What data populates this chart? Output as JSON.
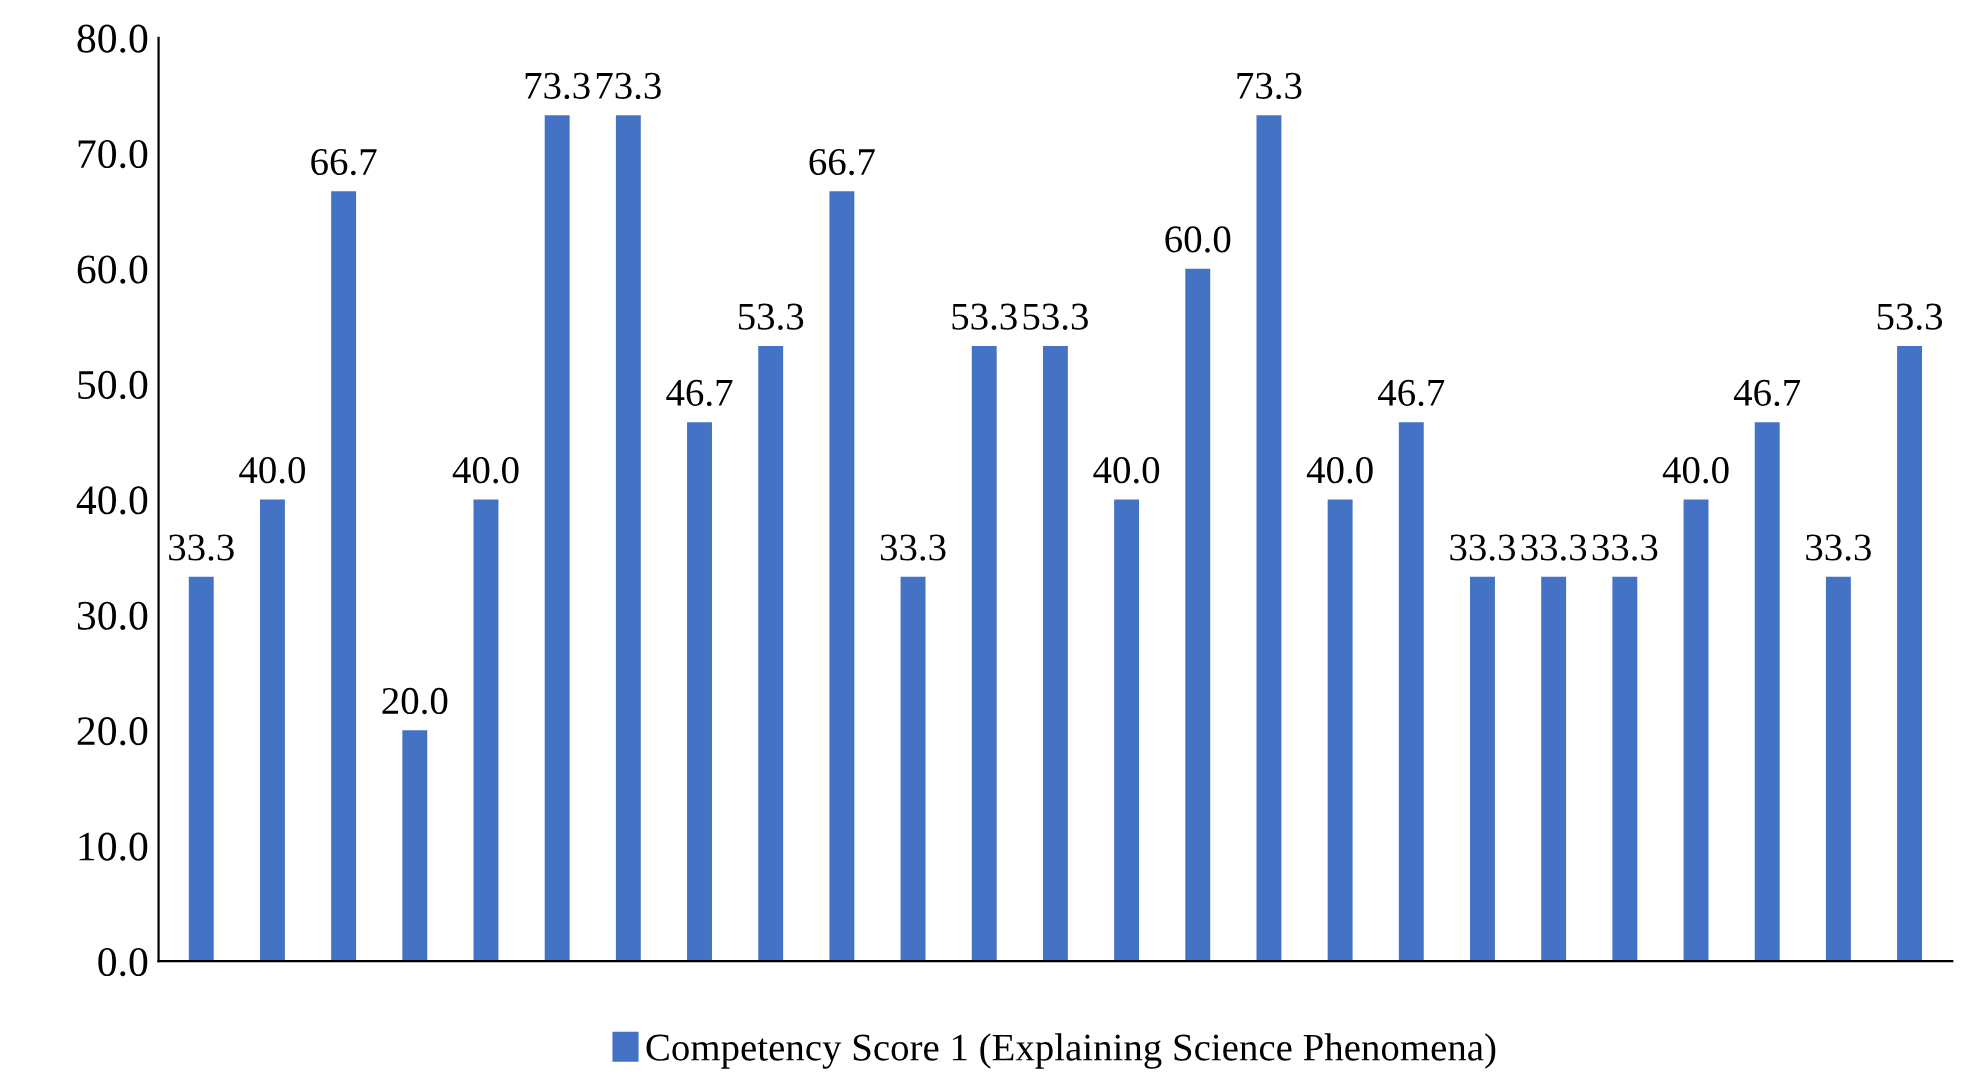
{
  "chart_data": {
    "type": "bar",
    "categories": [
      null,
      null,
      null,
      null,
      null,
      null,
      null,
      null,
      null,
      null,
      null,
      null,
      null,
      null,
      null,
      null,
      null,
      null,
      null,
      null,
      null,
      null,
      null,
      null,
      null
    ],
    "series": [
      {
        "name": "Competency Score 1 (Explaining Science Phenomena)",
        "color": "#4472c4",
        "values": [
          33.3,
          40.0,
          66.7,
          20.0,
          40.0,
          73.3,
          73.3,
          46.7,
          53.3,
          66.7,
          33.3,
          53.3,
          53.3,
          40.0,
          60.0,
          73.3,
          40.0,
          46.7,
          33.3,
          33.3,
          33.3,
          40.0,
          46.7,
          33.3,
          53.3
        ],
        "value_labels": [
          "33.3",
          "40.0",
          "66.7",
          "20.0",
          "40.0",
          "73.3",
          "73.3",
          "46.7",
          "53.3",
          "66.7",
          "33.3",
          "53.3",
          "53.3",
          "40.0",
          "60.0",
          "73.3",
          "40.0",
          "46.7",
          "33.3",
          "33.3",
          "33.3",
          "40.0",
          "46.7",
          "33.3",
          "53.3"
        ]
      }
    ],
    "ylim": [
      0,
      80
    ],
    "yticks": [
      {
        "value": 0,
        "label": "0.0"
      },
      {
        "value": 10,
        "label": "10.0"
      },
      {
        "value": 20,
        "label": "20.0"
      },
      {
        "value": 30,
        "label": "30.0"
      },
      {
        "value": 40,
        "label": "40.0"
      },
      {
        "value": 50,
        "label": "50.0"
      },
      {
        "value": 60,
        "label": "60.0"
      },
      {
        "value": 70,
        "label": "70.0"
      },
      {
        "value": 80,
        "label": "80.0"
      }
    ],
    "grid": false,
    "legend": "bottom"
  }
}
